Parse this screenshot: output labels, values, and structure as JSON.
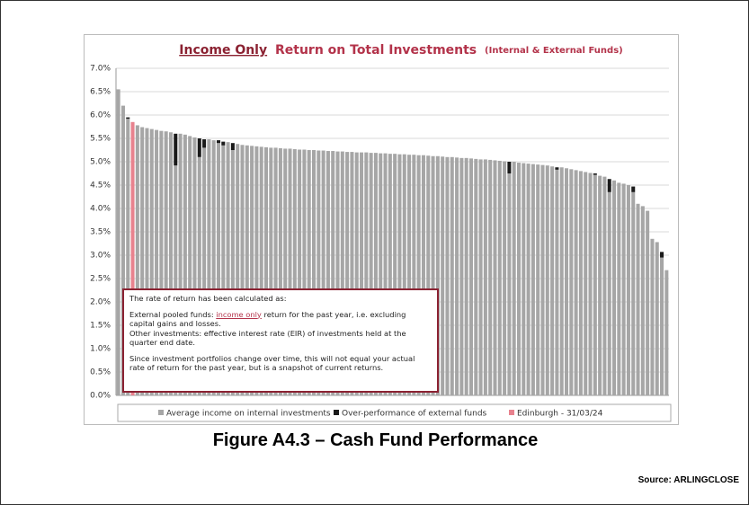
{
  "chart_data": {
    "type": "bar",
    "title_part1": "Income Only",
    "title_part2": "Return on Total Investments",
    "title_part3": "(Internal & External Funds)",
    "ylim": [
      0,
      7
    ],
    "yticks": [
      {
        "value": 0,
        "label": "0.0%"
      },
      {
        "value": 0.5,
        "label": "0.5%"
      },
      {
        "value": 1,
        "label": "1.0%"
      },
      {
        "value": 1.5,
        "label": "1.5%"
      },
      {
        "value": 2,
        "label": "2.0%"
      },
      {
        "value": 2.5,
        "label": "2.5%"
      },
      {
        "value": 3,
        "label": "3.0%"
      },
      {
        "value": 3.5,
        "label": "3.5%"
      },
      {
        "value": 4,
        "label": "4.0%"
      },
      {
        "value": 4.5,
        "label": "4.5%"
      },
      {
        "value": 5,
        "label": "5.0%"
      },
      {
        "value": 5.5,
        "label": "5.5%"
      },
      {
        "value": 6,
        "label": "6.0%"
      },
      {
        "value": 6.5,
        "label": "6.5%"
      },
      {
        "value": 7,
        "label": "7.0%"
      }
    ],
    "grid": true,
    "stacked": true,
    "series": [
      {
        "name": "Average income on internal investments",
        "color": "#a6a6a6",
        "values": [
          6.55,
          6.2,
          5.92,
          null,
          5.78,
          5.74,
          5.72,
          5.7,
          5.68,
          5.66,
          5.65,
          5.63,
          4.92,
          5.6,
          5.58,
          5.55,
          5.52,
          5.1,
          5.3,
          5.48,
          5.46,
          5.4,
          5.35,
          5.42,
          5.25,
          5.38,
          5.36,
          5.35,
          5.34,
          5.33,
          5.32,
          5.31,
          5.3,
          5.3,
          5.29,
          5.28,
          5.28,
          5.27,
          5.26,
          5.26,
          5.25,
          5.25,
          5.24,
          5.24,
          5.23,
          5.23,
          5.22,
          5.22,
          5.21,
          5.21,
          5.2,
          5.2,
          5.2,
          5.19,
          5.19,
          5.18,
          5.18,
          5.17,
          5.17,
          5.16,
          5.16,
          5.15,
          5.15,
          5.14,
          5.14,
          5.13,
          5.12,
          5.12,
          5.11,
          5.1,
          5.1,
          5.09,
          5.08,
          5.08,
          5.07,
          5.06,
          5.05,
          5.05,
          5.04,
          5.03,
          5.02,
          5.01,
          4.75,
          5.0,
          4.98,
          4.97,
          4.96,
          4.95,
          4.94,
          4.93,
          4.92,
          4.9,
          4.83,
          4.88,
          4.86,
          4.84,
          4.82,
          4.8,
          4.78,
          4.76,
          4.72,
          4.7,
          4.68,
          4.35,
          4.6,
          4.55,
          4.53,
          4.5,
          4.35,
          4.1,
          4.05,
          3.95,
          3.35,
          3.28,
          2.95,
          2.68
        ]
      },
      {
        "name": "Over-performance of external funds",
        "color": "#1a1a1a",
        "values": [
          null,
          null,
          0.03,
          null,
          null,
          null,
          null,
          null,
          null,
          null,
          null,
          null,
          0.68,
          null,
          null,
          null,
          null,
          0.4,
          0.18,
          null,
          null,
          0.06,
          0.08,
          null,
          0.15,
          null,
          null,
          null,
          null,
          null,
          null,
          null,
          null,
          null,
          null,
          null,
          null,
          null,
          null,
          null,
          null,
          null,
          null,
          null,
          null,
          null,
          null,
          null,
          null,
          null,
          null,
          null,
          null,
          null,
          null,
          null,
          null,
          null,
          null,
          null,
          null,
          null,
          null,
          null,
          null,
          null,
          null,
          null,
          null,
          null,
          null,
          null,
          null,
          null,
          null,
          null,
          null,
          null,
          null,
          null,
          null,
          null,
          0.25,
          null,
          null,
          null,
          null,
          null,
          null,
          null,
          null,
          null,
          0.05,
          null,
          null,
          null,
          null,
          null,
          null,
          null,
          0.03,
          null,
          null,
          0.28,
          null,
          null,
          null,
          null,
          0.12,
          null,
          null,
          null,
          null,
          null,
          0.12,
          null
        ]
      },
      {
        "name": "Edinburgh - 31/03/24",
        "color": "#e8828e",
        "values": [
          null,
          null,
          null,
          5.85,
          null,
          null,
          null,
          null,
          null,
          null,
          null,
          null,
          null,
          null,
          null,
          null,
          null,
          null,
          null,
          null,
          null,
          null,
          null,
          null,
          null,
          null,
          null,
          null,
          null,
          null,
          null,
          null,
          null,
          null,
          null,
          null,
          null,
          null,
          null,
          null,
          null,
          null,
          null,
          null,
          null,
          null,
          null,
          null,
          null,
          null,
          null,
          null,
          null,
          null,
          null,
          null,
          null,
          null,
          null,
          null,
          null,
          null,
          null,
          null,
          null,
          null,
          null,
          null,
          null,
          null,
          null,
          null,
          null,
          null,
          null,
          null,
          null,
          null,
          null,
          null,
          null,
          null,
          null,
          null,
          null,
          null,
          null,
          null,
          null,
          null,
          null,
          null,
          null,
          null,
          null,
          null,
          null,
          null,
          null,
          null,
          null,
          null,
          null,
          null,
          null,
          null,
          null,
          null,
          null,
          null,
          null,
          null,
          null,
          null,
          null,
          null
        ]
      }
    ]
  },
  "note": {
    "line1": "The rate of return has been calculated as:",
    "line2_pre": "External pooled funds: ",
    "line2_link": "income only",
    "line2_post": " return for the past year, i.e. excluding capital gains and losses.",
    "line3": "Other investments: effective interest rate (EIR) of investments held at the quarter end date.",
    "line4": "Since investment portfolios change over time, this will not equal your actual rate of return for the past year, but is a snapshot of current returns."
  },
  "caption": "Figure A4.3 – Cash Fund Performance",
  "source": "Source: ARLINGCLOSE"
}
